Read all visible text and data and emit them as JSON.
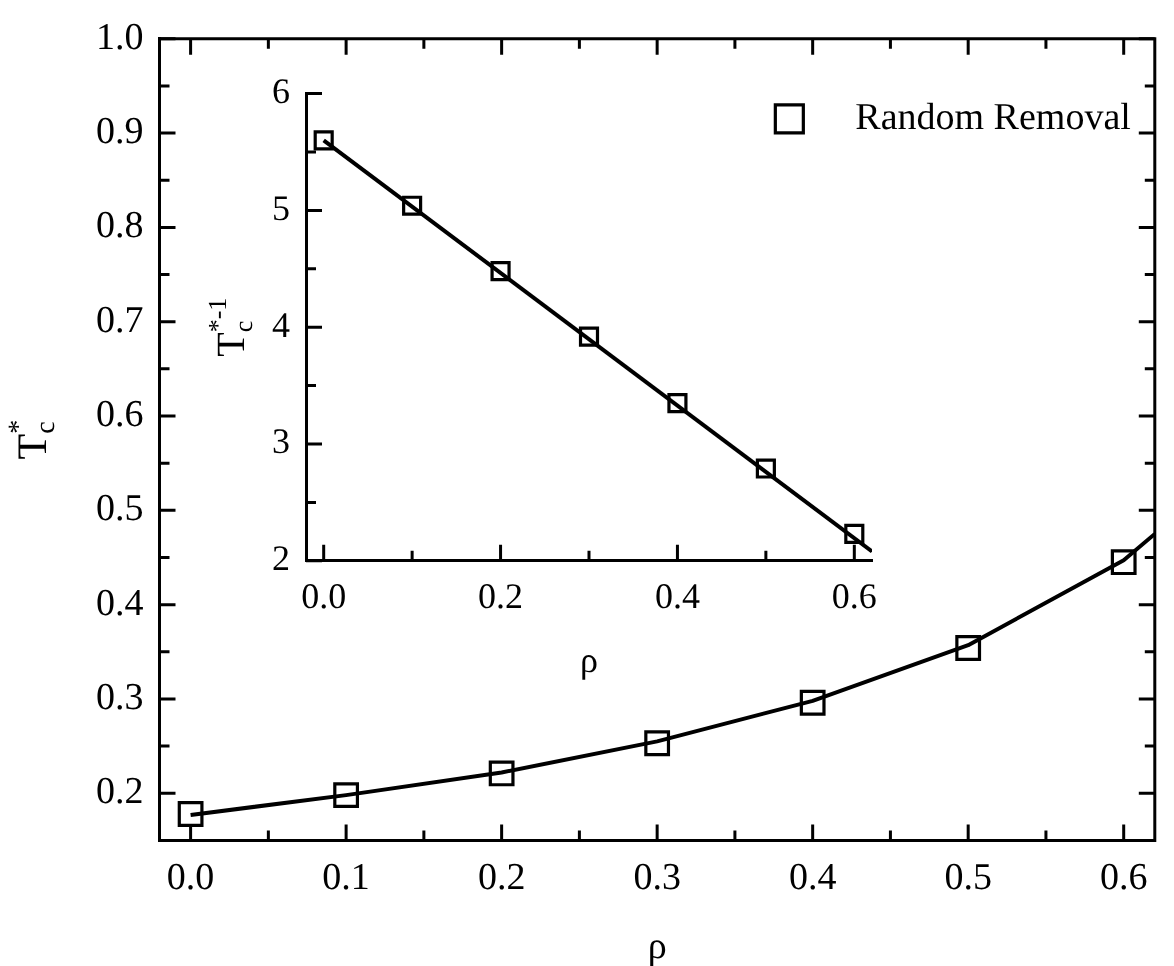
{
  "chart_data": [
    {
      "type": "scatter",
      "xlabel": "ρ",
      "ylabel": "T$^{*}$$_{c}$",
      "xlim": [
        -0.02,
        0.62
      ],
      "ylim": [
        0.15,
        1.0
      ],
      "xticks": [
        {
          "value": 0,
          "label": "0.0"
        },
        {
          "value": 0.05,
          "label": null
        },
        0.1,
        {
          "value": 0.15,
          "label": null
        },
        0.2,
        {
          "value": 0.25,
          "label": null
        },
        0.3,
        {
          "value": 0.35,
          "label": null
        },
        0.4,
        {
          "value": 0.45,
          "label": null
        },
        0.5,
        {
          "value": 0.55,
          "label": null
        },
        0.6
      ],
      "yticks": [
        0.2,
        {
          "value": 0.25,
          "label": null
        },
        0.3,
        {
          "value": 0.35,
          "label": null
        },
        0.4,
        {
          "value": 0.45,
          "label": null
        },
        0.5,
        {
          "value": 0.55,
          "label": null
        },
        0.6,
        {
          "value": 0.65,
          "label": null
        },
        0.7,
        {
          "value": 0.75,
          "label": null
        },
        0.8,
        {
          "value": 0.85,
          "label": null
        },
        0.9,
        {
          "value": 0.95,
          "label": null
        },
        {
          "value": 1.0,
          "label": "1.0"
        }
      ],
      "grid": false,
      "legend": "top right",
      "marker": "square",
      "line_style": "solid",
      "series": [
        {
          "name": "Random Removal",
          "color": "#000000",
          "x": [
            0,
            0.1,
            0.2,
            0.3,
            0.4,
            0.5,
            0.6
          ],
          "values": [
            0.178,
            0.198,
            0.221,
            0.253,
            0.296,
            0.354,
            0.445
          ]
        },
        {
          "type": "line",
          "color": "#000000",
          "marker": "none",
          "x": [
            0,
            0.1,
            0.2,
            0.3,
            0.4,
            0.5,
            0.6,
            0.62
          ],
          "values": [
            0.177,
            0.198,
            0.222,
            0.255,
            0.298,
            0.357,
            0.447,
            0.475
          ]
        }
      ]
    },
    {
      "type": "scatter",
      "xlabel": "ρ",
      "ylabel": "T$^{*-1}$$_{c}$",
      "xlim": [
        -0.02,
        0.62
      ],
      "ylim": [
        2,
        6
      ],
      "xticks": [
        {
          "value": 0,
          "label": "0.0"
        },
        {
          "value": 0.1,
          "label": null
        },
        0.2,
        {
          "value": 0.3,
          "label": null
        },
        0.4,
        {
          "value": 0.5,
          "label": null
        },
        0.6
      ],
      "yticks": [
        2,
        {
          "value": 2.5,
          "label": null
        },
        3,
        {
          "value": 3.5,
          "label": null
        },
        4,
        {
          "value": 4.5,
          "label": null
        },
        5,
        {
          "value": 5.5,
          "label": null
        },
        6
      ],
      "grid": false,
      "marker": "square",
      "line_style": "solid",
      "series": [
        {
          "color": "#000000",
          "x": [
            0,
            0.1,
            0.2,
            0.3,
            0.4,
            0.5,
            0.6
          ],
          "values": [
            5.6,
            5.04,
            4.48,
            3.92,
            3.35,
            2.79,
            2.23
          ]
        },
        {
          "type": "line",
          "color": "#000000",
          "marker": "none",
          "x": [
            0,
            0.62
          ],
          "values": [
            5.6,
            2.08
          ]
        }
      ]
    }
  ]
}
